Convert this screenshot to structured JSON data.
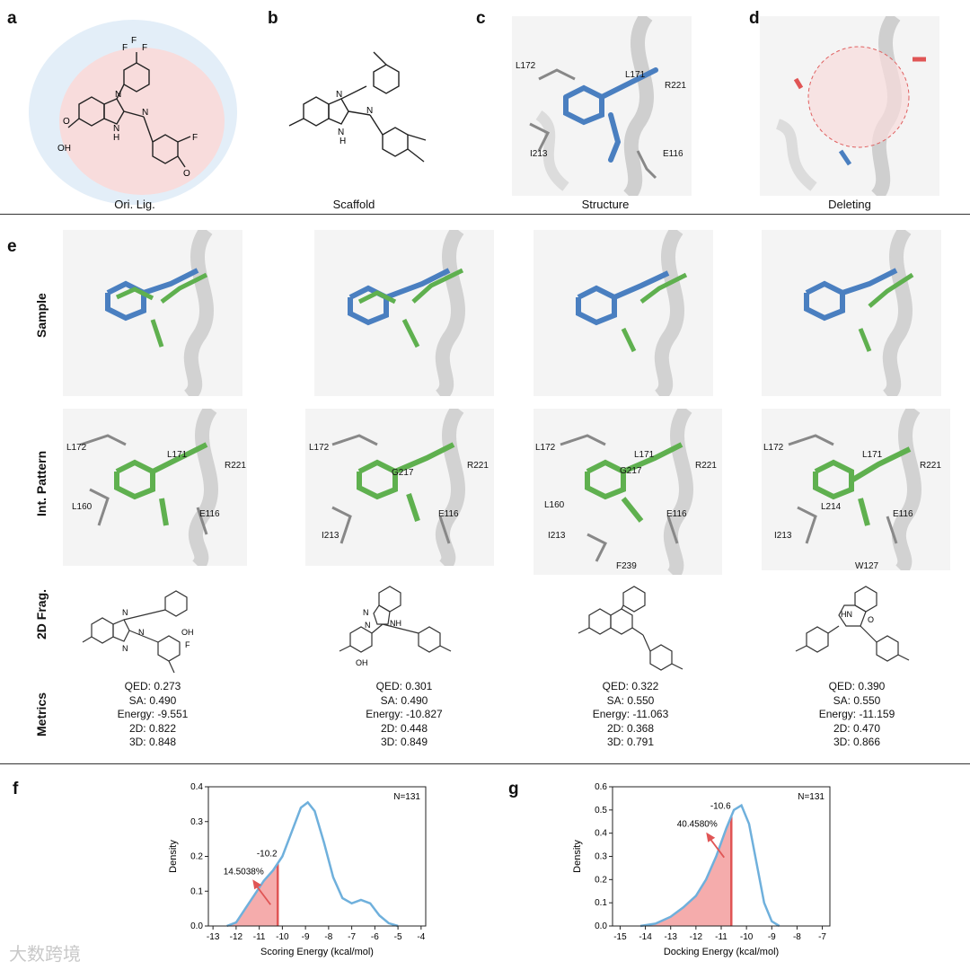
{
  "panels": {
    "a": {
      "label": "a",
      "caption": "Ori. Lig.",
      "atoms": [
        "F",
        "F",
        "F",
        "N",
        "N",
        "N",
        "H",
        "O",
        "OH",
        "F",
        "O"
      ]
    },
    "b": {
      "label": "b",
      "caption": "Scaffold",
      "atoms": [
        "N",
        "N",
        "N",
        "H"
      ]
    },
    "c": {
      "label": "c",
      "caption": "Structure",
      "residues": [
        "L172",
        "L171",
        "R221",
        "I213",
        "E116"
      ]
    },
    "d": {
      "label": "d",
      "caption": "Deleting"
    },
    "e": {
      "label": "e"
    },
    "f": {
      "label": "f"
    },
    "g": {
      "label": "g"
    }
  },
  "row_labels": [
    "Sample",
    "Int. Pattern",
    "2D Frag.",
    "Metrics"
  ],
  "interaction_residues": [
    [
      "L172",
      "L171",
      "R221",
      "L160",
      "E116"
    ],
    [
      "L172",
      "G217",
      "R221",
      "I213",
      "E116"
    ],
    [
      "L172",
      "L171",
      "G217",
      "R221",
      "L160",
      "I213",
      "E116",
      "F239"
    ],
    [
      "L172",
      "L171",
      "R221",
      "L214",
      "I213",
      "E116",
      "W127"
    ]
  ],
  "metrics": [
    {
      "qed": "QED: 0.273",
      "sa": "SA: 0.490",
      "energy": "Energy: -9.551",
      "d2": "2D: 0.822",
      "d3": "3D: 0.848"
    },
    {
      "qed": "QED: 0.301",
      "sa": "SA: 0.490",
      "energy": "Energy: -10.827",
      "d2": "2D: 0.448",
      "d3": "3D: 0.849"
    },
    {
      "qed": "QED: 0.322",
      "sa": "SA: 0.550",
      "energy": "Energy: -11.063",
      "d2": "2D: 0.368",
      "d3": "3D: 0.791"
    },
    {
      "qed": "QED: 0.390",
      "sa": "SA: 0.550",
      "energy": "Energy: -11.159",
      "d2": "2D: 0.470",
      "d3": "3D: 0.866"
    }
  ],
  "frag_atoms": [
    [
      "N",
      "N",
      "N",
      "OH",
      "F"
    ],
    [
      "N",
      "N",
      "NH",
      "OH"
    ],
    [],
    [
      "HN",
      "O"
    ]
  ],
  "colors": {
    "kde_line": "#6fb0dc",
    "fill": "#f4a3a3",
    "marker": "#e05555",
    "bg_outer": "#e3eef8",
    "bg_inner": "#f8dcdc"
  },
  "watermark": "大数跨境",
  "chart_data": [
    {
      "type": "area",
      "xlabel": "Scoring Energy (kcal/mol)",
      "ylabel": "Density",
      "xlim": [
        -13.2,
        -3.8
      ],
      "ylim": [
        0,
        0.4
      ],
      "xticks": [
        -13,
        -12,
        -11,
        -10,
        -9,
        -8,
        -7,
        -6,
        -5,
        -4
      ],
      "yticks": [
        0.0,
        0.1,
        0.2,
        0.3,
        0.4
      ],
      "n_label": "N=131",
      "threshold": -10.2,
      "threshold_label": "-10.2",
      "percent_label": "14.5038%",
      "x": [
        -12.4,
        -12.0,
        -11.6,
        -11.2,
        -10.8,
        -10.4,
        -10.0,
        -9.6,
        -9.2,
        -8.9,
        -8.6,
        -8.2,
        -7.8,
        -7.4,
        -7.0,
        -6.6,
        -6.2,
        -5.8,
        -5.4,
        -5.0
      ],
      "y": [
        0.0,
        0.01,
        0.05,
        0.09,
        0.13,
        0.16,
        0.2,
        0.27,
        0.34,
        0.355,
        0.33,
        0.24,
        0.14,
        0.08,
        0.065,
        0.075,
        0.065,
        0.03,
        0.008,
        0.0
      ]
    },
    {
      "type": "area",
      "xlabel": "Docking Energy (kcal/mol)",
      "ylabel": "Density",
      "xlim": [
        -15.3,
        -6.7
      ],
      "ylim": [
        0,
        0.6
      ],
      "xticks": [
        -15,
        -14,
        -13,
        -12,
        -11,
        -10,
        -9,
        -8,
        -7
      ],
      "yticks": [
        0.0,
        0.1,
        0.2,
        0.3,
        0.4,
        0.5,
        0.6
      ],
      "n_label": "N=131",
      "threshold": -10.6,
      "threshold_label": "-10.6",
      "percent_label": "40.4580%",
      "x": [
        -14.2,
        -13.6,
        -13.0,
        -12.5,
        -12.0,
        -11.6,
        -11.2,
        -10.8,
        -10.5,
        -10.2,
        -9.9,
        -9.6,
        -9.3,
        -9.0,
        -8.7
      ],
      "y": [
        0.0,
        0.01,
        0.04,
        0.08,
        0.13,
        0.2,
        0.3,
        0.42,
        0.5,
        0.52,
        0.44,
        0.27,
        0.1,
        0.02,
        0.0
      ]
    }
  ]
}
